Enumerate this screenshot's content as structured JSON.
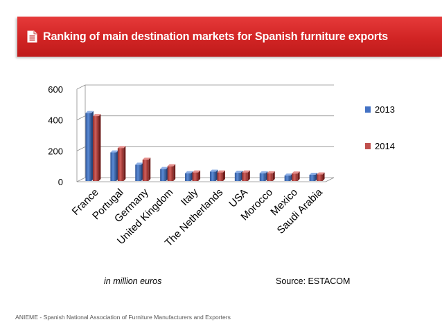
{
  "header": {
    "title": "Ranking of main destination markets for Spanish furniture exports",
    "icon": "document-icon"
  },
  "chart_data": {
    "type": "bar",
    "title": "",
    "categories": [
      "France",
      "Portugal",
      "Germany",
      "United Kingdom",
      "Italy",
      "The Netherlands",
      "USA",
      "Morocco",
      "Mexico",
      "Saudi Arabia"
    ],
    "series": [
      {
        "name": "2013",
        "values": [
          445,
          190,
          110,
          82,
          55,
          65,
          58,
          55,
          40,
          45
        ],
        "color": "#4472c4"
      },
      {
        "name": "2014",
        "values": [
          425,
          218,
          143,
          100,
          60,
          60,
          60,
          55,
          53,
          47
        ],
        "color": "#c0504d"
      }
    ],
    "ylim": [
      0,
      600
    ],
    "yticks": [
      0,
      200,
      400,
      600
    ],
    "grid": true,
    "legend": "right",
    "xlabel": "",
    "ylabel": ""
  },
  "notes": {
    "units": "in million euros",
    "source": "Source: ESTACOM"
  },
  "footer": "ANIEME - Spanish National Association of Furniture Manufacturers and Exporters"
}
